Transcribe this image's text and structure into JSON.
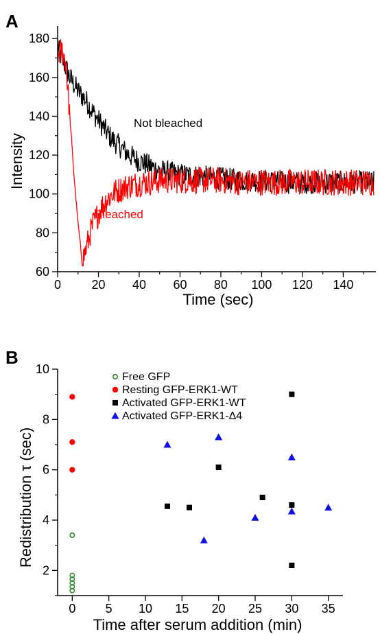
{
  "chart_data": [
    {
      "panel": "A",
      "type": "line",
      "xlabel": "Time (sec)",
      "ylabel": "Intensity",
      "xlim": [
        0,
        156
      ],
      "ylim": [
        60,
        185
      ],
      "xticks": [
        0,
        20,
        40,
        60,
        80,
        100,
        120,
        140
      ],
      "yticks": [
        60,
        80,
        100,
        120,
        140,
        160,
        180
      ],
      "grid": false,
      "colors": {
        "Not bleached": "#000000",
        "Bleached": "#ff0000"
      },
      "annotations": {
        "not_bleached": "Not bleached",
        "bleached": "Bleached"
      },
      "series": [
        {
          "name": "Not bleached",
          "x": [
            0,
            2,
            4,
            6,
            10,
            14,
            18,
            22,
            26,
            30,
            34,
            38,
            42,
            46,
            50,
            55,
            60,
            70,
            80,
            90,
            100,
            110,
            120,
            130,
            140,
            150,
            155
          ],
          "y": [
            175,
            170,
            165,
            160,
            153,
            148,
            141,
            135,
            129,
            125,
            121,
            118,
            116,
            114,
            112,
            111,
            110,
            109,
            108,
            107,
            107,
            106,
            106,
            106,
            106,
            106,
            106
          ]
        },
        {
          "name": "Bleached",
          "x": [
            0,
            2,
            4,
            6,
            8,
            10,
            12,
            14,
            16,
            18,
            20,
            22,
            24,
            26,
            28,
            30,
            34,
            38,
            42,
            46,
            50,
            55,
            60,
            70,
            80,
            90,
            100,
            110,
            120,
            130,
            140,
            150,
            155
          ],
          "y": [
            172,
            174,
            168,
            140,
            110,
            85,
            65,
            72,
            80,
            86,
            90,
            94,
            97,
            99,
            101,
            102,
            104,
            105,
            106,
            106,
            107,
            107,
            107,
            107,
            107,
            106,
            106,
            106,
            106,
            106,
            106,
            106,
            106
          ]
        }
      ]
    },
    {
      "panel": "B",
      "type": "scatter",
      "xlabel": "Time after serum addition (min)",
      "ylabel": "Redistribution τ (sec)",
      "xlim": [
        -2,
        37
      ],
      "ylim": [
        1,
        10
      ],
      "xticks": [
        0,
        5,
        10,
        15,
        20,
        25,
        30,
        35
      ],
      "yticks": [
        2,
        4,
        6,
        8,
        10
      ],
      "grid": false,
      "legend_position": "top-right",
      "series": [
        {
          "name": "Free GFP",
          "marker": "open-circle",
          "color": "#2e8b2e",
          "x": [
            0,
            0,
            0,
            0,
            0,
            0
          ],
          "y": [
            3.4,
            1.8,
            1.65,
            1.5,
            1.35,
            1.2
          ]
        },
        {
          "name": "Resting GFP-ERK1-WT",
          "marker": "filled-circle",
          "color": "#ff0000",
          "x": [
            0,
            0,
            0
          ],
          "y": [
            8.9,
            7.1,
            6.0
          ]
        },
        {
          "name": "Activated GFP-ERK1-WT",
          "marker": "square",
          "color": "#000000",
          "x": [
            13,
            16,
            20,
            26,
            30,
            30,
            30
          ],
          "y": [
            4.55,
            4.5,
            6.1,
            4.9,
            9.0,
            4.6,
            2.2
          ]
        },
        {
          "name": "Activated GFP-ERK1-Δ4",
          "marker": "triangle",
          "color": "#1010e0",
          "x": [
            13,
            18,
            20,
            25,
            30,
            30,
            35
          ],
          "y": [
            7.0,
            3.2,
            7.3,
            4.1,
            6.5,
            4.35,
            4.5
          ]
        }
      ]
    }
  ]
}
